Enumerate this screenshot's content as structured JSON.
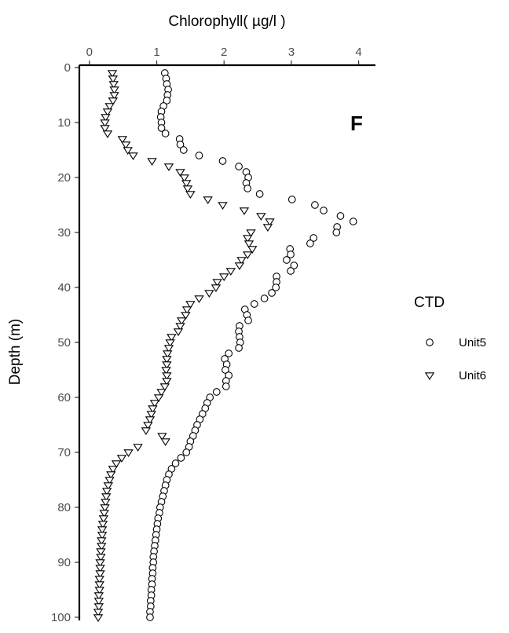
{
  "chart_data": {
    "type": "scatter",
    "title": "",
    "xlabel": "Chlorophyll( µg/l )",
    "ylabel": "Depth (m)",
    "xlim": [
      -0.15,
      4.25
    ],
    "ylim": [
      0,
      100
    ],
    "x_axis_position": "top",
    "y_reversed": true,
    "x_ticks": [
      0,
      1,
      2,
      3,
      4
    ],
    "y_ticks": [
      0,
      10,
      20,
      30,
      40,
      50,
      60,
      70,
      80,
      90,
      100
    ],
    "panel_label": "F",
    "grid": false,
    "legend": {
      "title": "CTD",
      "position": "right"
    },
    "series": [
      {
        "name": "Unit5",
        "marker": "circle",
        "points": [
          [
            1.12,
            1
          ],
          [
            1.14,
            2
          ],
          [
            1.15,
            3
          ],
          [
            1.17,
            4
          ],
          [
            1.16,
            5
          ],
          [
            1.15,
            6
          ],
          [
            1.1,
            7
          ],
          [
            1.07,
            8
          ],
          [
            1.06,
            9
          ],
          [
            1.07,
            10
          ],
          [
            1.07,
            11
          ],
          [
            1.13,
            12
          ],
          [
            1.34,
            13
          ],
          [
            1.35,
            14
          ],
          [
            1.4,
            15
          ],
          [
            1.63,
            16
          ],
          [
            1.98,
            17
          ],
          [
            2.22,
            18
          ],
          [
            2.33,
            19
          ],
          [
            2.36,
            20
          ],
          [
            2.33,
            21
          ],
          [
            2.35,
            22
          ],
          [
            2.53,
            23
          ],
          [
            3.01,
            24
          ],
          [
            3.35,
            25
          ],
          [
            3.48,
            26
          ],
          [
            3.73,
            27
          ],
          [
            3.92,
            28
          ],
          [
            3.68,
            29
          ],
          [
            3.67,
            30
          ],
          [
            3.33,
            31
          ],
          [
            3.28,
            32
          ],
          [
            2.98,
            33
          ],
          [
            2.99,
            34
          ],
          [
            2.93,
            35
          ],
          [
            3.04,
            36
          ],
          [
            2.99,
            37
          ],
          [
            2.78,
            38
          ],
          [
            2.78,
            39
          ],
          [
            2.77,
            40
          ],
          [
            2.71,
            41
          ],
          [
            2.6,
            42
          ],
          [
            2.45,
            43
          ],
          [
            2.31,
            44
          ],
          [
            2.34,
            45
          ],
          [
            2.36,
            46
          ],
          [
            2.23,
            47
          ],
          [
            2.22,
            48
          ],
          [
            2.23,
            49
          ],
          [
            2.24,
            50
          ],
          [
            2.22,
            51
          ],
          [
            2.07,
            52
          ],
          [
            2.01,
            53
          ],
          [
            2.04,
            54
          ],
          [
            2.02,
            55
          ],
          [
            2.07,
            56
          ],
          [
            2.03,
            57
          ],
          [
            2.03,
            58
          ],
          [
            1.89,
            59
          ],
          [
            1.79,
            60
          ],
          [
            1.75,
            61
          ],
          [
            1.72,
            62
          ],
          [
            1.68,
            63
          ],
          [
            1.64,
            64
          ],
          [
            1.6,
            65
          ],
          [
            1.57,
            66
          ],
          [
            1.54,
            67
          ],
          [
            1.5,
            68
          ],
          [
            1.48,
            69
          ],
          [
            1.44,
            70
          ],
          [
            1.36,
            71
          ],
          [
            1.28,
            72
          ],
          [
            1.22,
            73
          ],
          [
            1.18,
            74
          ],
          [
            1.15,
            75
          ],
          [
            1.13,
            76
          ],
          [
            1.11,
            77
          ],
          [
            1.09,
            78
          ],
          [
            1.07,
            79
          ],
          [
            1.05,
            80
          ],
          [
            1.04,
            81
          ],
          [
            1.02,
            82
          ],
          [
            1.01,
            83
          ],
          [
            1.0,
            84
          ],
          [
            0.99,
            85
          ],
          [
            0.98,
            86
          ],
          [
            0.97,
            87
          ],
          [
            0.96,
            88
          ],
          [
            0.95,
            89
          ],
          [
            0.95,
            90
          ],
          [
            0.94,
            91
          ],
          [
            0.94,
            92
          ],
          [
            0.93,
            93
          ],
          [
            0.93,
            94
          ],
          [
            0.92,
            95
          ],
          [
            0.92,
            96
          ],
          [
            0.91,
            97
          ],
          [
            0.91,
            98
          ],
          [
            0.9,
            99
          ],
          [
            0.9,
            100
          ]
        ]
      },
      {
        "name": "Unit6",
        "marker": "triangle-down",
        "points": [
          [
            0.34,
            1
          ],
          [
            0.35,
            2
          ],
          [
            0.36,
            3
          ],
          [
            0.37,
            4
          ],
          [
            0.37,
            5
          ],
          [
            0.35,
            6
          ],
          [
            0.3,
            7
          ],
          [
            0.27,
            8
          ],
          [
            0.24,
            9
          ],
          [
            0.23,
            10
          ],
          [
            0.23,
            11
          ],
          [
            0.27,
            12
          ],
          [
            0.49,
            13
          ],
          [
            0.54,
            14
          ],
          [
            0.57,
            15
          ],
          [
            0.65,
            16
          ],
          [
            0.93,
            17
          ],
          [
            1.18,
            18
          ],
          [
            1.35,
            19
          ],
          [
            1.41,
            20
          ],
          [
            1.44,
            21
          ],
          [
            1.46,
            22
          ],
          [
            1.5,
            23
          ],
          [
            1.76,
            24
          ],
          [
            1.98,
            25
          ],
          [
            2.3,
            26
          ],
          [
            2.55,
            27
          ],
          [
            2.68,
            28
          ],
          [
            2.65,
            29
          ],
          [
            2.4,
            30
          ],
          [
            2.35,
            31
          ],
          [
            2.37,
            32
          ],
          [
            2.42,
            33
          ],
          [
            2.35,
            34
          ],
          [
            2.26,
            35
          ],
          [
            2.23,
            36
          ],
          [
            2.1,
            37
          ],
          [
            2.0,
            38
          ],
          [
            1.9,
            39
          ],
          [
            1.88,
            40
          ],
          [
            1.78,
            41
          ],
          [
            1.63,
            42
          ],
          [
            1.5,
            43
          ],
          [
            1.45,
            44
          ],
          [
            1.43,
            45
          ],
          [
            1.37,
            46
          ],
          [
            1.35,
            47
          ],
          [
            1.32,
            48
          ],
          [
            1.22,
            49
          ],
          [
            1.2,
            50
          ],
          [
            1.18,
            51
          ],
          [
            1.16,
            52
          ],
          [
            1.15,
            53
          ],
          [
            1.15,
            54
          ],
          [
            1.14,
            55
          ],
          [
            1.15,
            56
          ],
          [
            1.15,
            57
          ],
          [
            1.12,
            58
          ],
          [
            1.07,
            59
          ],
          [
            1.03,
            60
          ],
          [
            0.97,
            61
          ],
          [
            0.94,
            62
          ],
          [
            0.92,
            63
          ],
          [
            0.9,
            64
          ],
          [
            0.87,
            65
          ],
          [
            0.84,
            66
          ],
          [
            1.08,
            67
          ],
          [
            1.13,
            68
          ],
          [
            0.72,
            69
          ],
          [
            0.58,
            70
          ],
          [
            0.48,
            71
          ],
          [
            0.4,
            72
          ],
          [
            0.35,
            73
          ],
          [
            0.32,
            74
          ],
          [
            0.3,
            75
          ],
          [
            0.28,
            76
          ],
          [
            0.26,
            77
          ],
          [
            0.25,
            78
          ],
          [
            0.24,
            79
          ],
          [
            0.23,
            80
          ],
          [
            0.22,
            81
          ],
          [
            0.21,
            82
          ],
          [
            0.2,
            83
          ],
          [
            0.19,
            84
          ],
          [
            0.19,
            85
          ],
          [
            0.18,
            86
          ],
          [
            0.18,
            87
          ],
          [
            0.17,
            88
          ],
          [
            0.17,
            89
          ],
          [
            0.16,
            90
          ],
          [
            0.16,
            91
          ],
          [
            0.16,
            92
          ],
          [
            0.15,
            93
          ],
          [
            0.15,
            94
          ],
          [
            0.15,
            95
          ],
          [
            0.14,
            96
          ],
          [
            0.14,
            97
          ],
          [
            0.14,
            98
          ],
          [
            0.13,
            99
          ],
          [
            0.13,
            100
          ]
        ]
      }
    ]
  }
}
